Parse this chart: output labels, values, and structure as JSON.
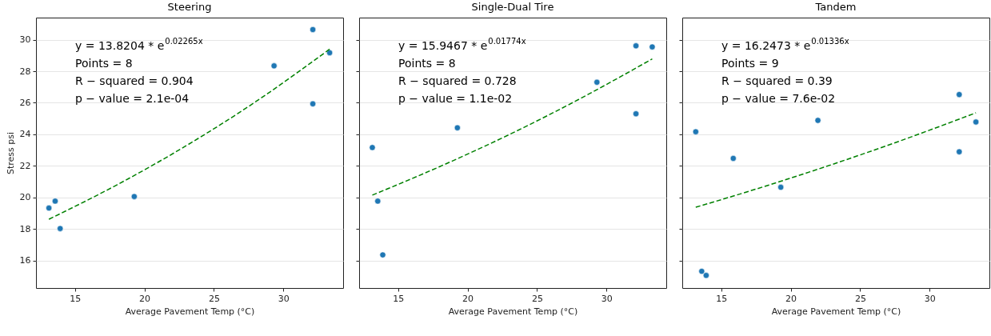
{
  "chart_data": [
    {
      "type": "scatter",
      "title": "Steering",
      "xlabel": "Average Pavement Temp (°C)",
      "ylabel": "Stress psi",
      "xlim": [
        12.2,
        34.3
      ],
      "xticks": [
        15,
        20,
        25,
        30
      ],
      "ylim": [
        14.25,
        31.4
      ],
      "yticks": [
        16,
        18,
        20,
        22,
        24,
        26,
        28,
        30
      ],
      "grid": "y",
      "annotations": [
        "y = 13.8204 * e$^{0.02265x}$",
        "Points = 8",
        "R − squared = 0.904",
        "p − value = 2.1e-04"
      ],
      "series": [
        {
          "color": "#1f77b4",
          "marker": "circle",
          "x": [
            13.13,
            13.58,
            13.94,
            19.27,
            29.33,
            32.12,
            32.12,
            33.33
          ],
          "values": [
            19.32,
            19.76,
            18.02,
            20.05,
            28.34,
            30.64,
            25.93,
            29.17
          ]
        },
        {
          "type": "line",
          "color": "#008000",
          "line_style": "dashed",
          "marker": "none",
          "x": [
            13.13,
            18,
            23,
            28,
            33.33
          ],
          "values": [
            18.61,
            20.78,
            23.27,
            26.06,
            29.4
          ]
        }
      ]
    },
    {
      "type": "scatter",
      "title": "Single-Dual Tire",
      "xlabel": "Average Pavement Temp (°C)",
      "xlim": [
        12.2,
        34.3
      ],
      "xticks": [
        15,
        20,
        25,
        30
      ],
      "ylim": [
        14.25,
        31.4
      ],
      "yticks": [
        16,
        18,
        20,
        22,
        24,
        26,
        28,
        30
      ],
      "grid": "y",
      "tick_labels": "x",
      "annotations": [
        "y = 15.9467 * e$^{0.01774x}$",
        "Points = 8",
        "R − squared = 0.728",
        "p − value = 1.1e-02"
      ],
      "series": [
        {
          "color": "#1f77b4",
          "marker": "circle",
          "x": [
            13.15,
            13.54,
            13.9,
            19.27,
            29.31,
            32.12,
            32.12,
            33.29
          ],
          "values": [
            23.16,
            19.76,
            16.35,
            24.41,
            27.3,
            29.61,
            25.3,
            29.54
          ]
        },
        {
          "type": "line",
          "color": "#008000",
          "line_style": "dashed",
          "marker": "none",
          "x": [
            13.15,
            18,
            23,
            28,
            33.29
          ],
          "values": [
            20.14,
            21.95,
            23.98,
            26.21,
            28.78
          ]
        }
      ]
    },
    {
      "type": "scatter",
      "title": "Tandem",
      "xlabel": "Average Pavement Temp (°C)",
      "xlim": [
        12.2,
        34.3
      ],
      "xticks": [
        15,
        20,
        25,
        30
      ],
      "ylim": [
        14.25,
        31.4
      ],
      "yticks": [
        16,
        18,
        20,
        22,
        24,
        26,
        28,
        30
      ],
      "grid": "y",
      "tick_labels": "x",
      "annotations": [
        "y = 16.2473 * e$^{0.01336x}$",
        "Points = 9",
        "R − squared = 0.39",
        "p − value = 7.6e-02"
      ],
      "series": [
        {
          "color": "#1f77b4",
          "marker": "circle",
          "x": [
            13.17,
            13.6,
            13.92,
            15.87,
            19.29,
            21.96,
            32.13,
            32.13,
            33.33
          ],
          "values": [
            24.16,
            15.31,
            15.05,
            22.47,
            20.64,
            24.88,
            26.52,
            22.89,
            24.78
          ]
        },
        {
          "type": "line",
          "color": "#008000",
          "line_style": "dashed",
          "marker": "none",
          "x": [
            13.17,
            18,
            23,
            28,
            33.33
          ],
          "values": [
            19.37,
            20.66,
            22.09,
            23.62,
            25.36
          ]
        }
      ]
    }
  ]
}
